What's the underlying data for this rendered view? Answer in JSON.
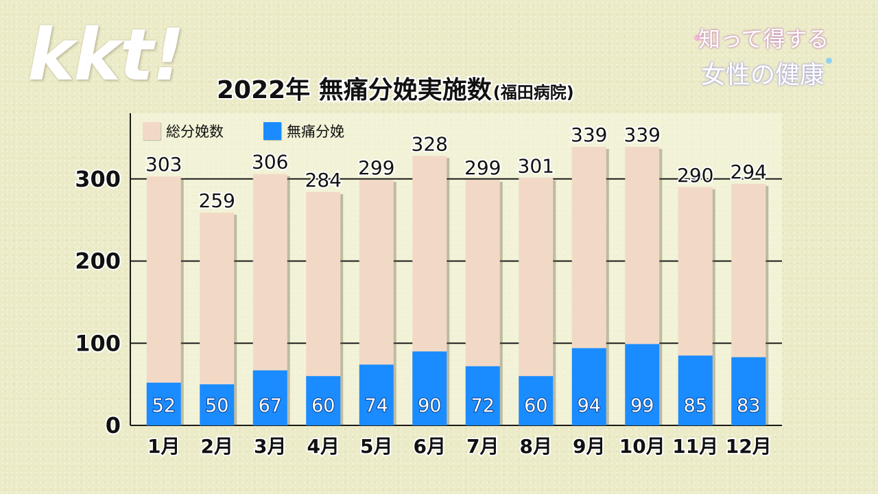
{
  "logo": "kkt!",
  "title": {
    "main": "2022年 無痛分娩実施数",
    "sub": "(福田病院)"
  },
  "corner_badge": {
    "line1": "知って得する",
    "line2": "女性の健康"
  },
  "colors": {
    "total": "#f2d9c6",
    "epidural": "#1a8cff",
    "background": "#ecebc8"
  },
  "legend": [
    {
      "label": "総分娩数",
      "color": "#f2d9c6"
    },
    {
      "label": "無痛分娩",
      "color": "#1a8cff"
    }
  ],
  "chart_data": {
    "type": "bar",
    "title": "2022年 無痛分娩実施数(福田病院)",
    "categories": [
      "1月",
      "2月",
      "3月",
      "4月",
      "5月",
      "6月",
      "7月",
      "8月",
      "9月",
      "10月",
      "11月",
      "12月"
    ],
    "series": [
      {
        "name": "総分娩数",
        "values": [
          303,
          259,
          306,
          284,
          299,
          328,
          299,
          301,
          339,
          339,
          290,
          294
        ]
      },
      {
        "name": "無痛分娩",
        "values": [
          52,
          50,
          67,
          60,
          74,
          90,
          72,
          60,
          94,
          99,
          85,
          83
        ]
      }
    ],
    "ylim": [
      0,
      380
    ],
    "yticks": [
      0,
      100,
      200,
      300
    ],
    "grid": true,
    "legend_position": "top-left",
    "bar_mode": "overlay"
  }
}
